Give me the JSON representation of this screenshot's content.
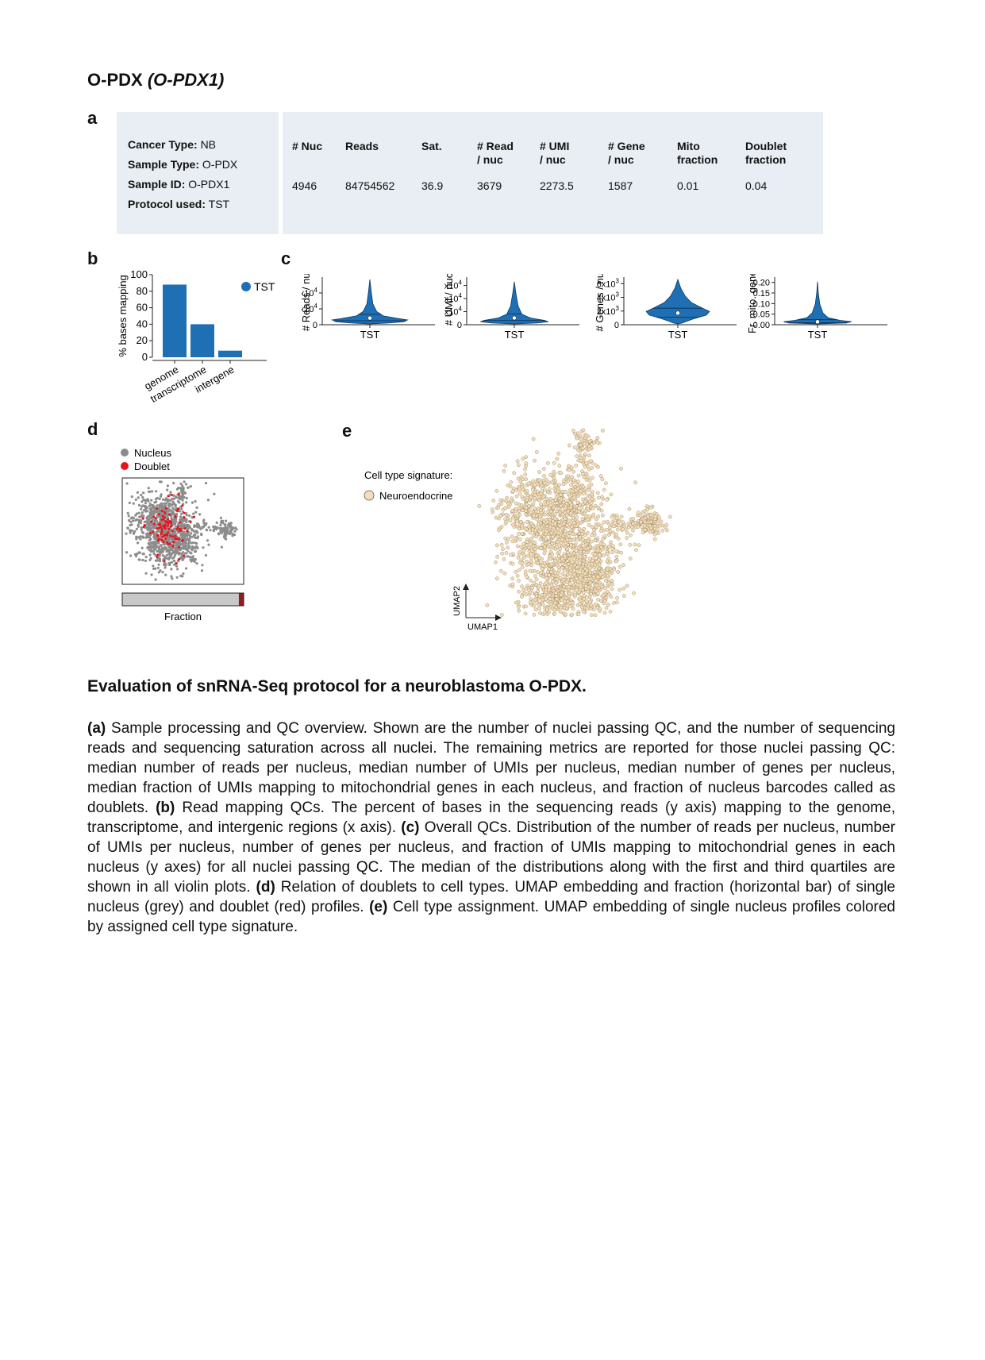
{
  "page_title": {
    "main": "O-PDX",
    "sub": "(O-PDX1)"
  },
  "panel_letters": {
    "a": "a",
    "b": "b",
    "c": "c",
    "d": "d",
    "e": "e"
  },
  "panel_a": {
    "info": [
      {
        "label": "Cancer Type:",
        "value": "NB"
      },
      {
        "label": "Sample Type:",
        "value": "O-PDX"
      },
      {
        "label": "Sample ID:",
        "value": "O-PDX1"
      },
      {
        "label": "Protocol used:",
        "value": "TST"
      }
    ],
    "headers": [
      "# Nuc",
      "Reads",
      "Sat.",
      "# Read\n/ nuc",
      "# UMI\n/ nuc",
      "# Gene\n/ nuc",
      "Mito\nfraction",
      "Doublet\nfraction"
    ],
    "values": [
      "4946",
      "84754562",
      "36.9",
      "3679",
      "2273.5",
      "1587",
      "0.01",
      "0.04"
    ]
  },
  "chart_data": [
    {
      "type": "bar",
      "panel": "b",
      "categories": [
        "genome",
        "transcriptome",
        "intergene"
      ],
      "series": [
        {
          "name": "TST",
          "values": [
            88,
            40,
            8
          ],
          "color": "#1f6fb4"
        }
      ],
      "ylabel": "% bases mapping",
      "ylim": [
        0,
        100
      ],
      "yticks": [
        "0",
        "20",
        "40",
        "60",
        "80",
        "100"
      ]
    },
    {
      "type": "violin",
      "panel": "c",
      "plots": [
        {
          "ylabel": "# Reads / nuc",
          "xlabel": "TST",
          "yticks": [
            "0",
            "1x10",
            "2x10"
          ],
          "ytick_exp": [
            "",
            "4",
            "4"
          ],
          "ytick_values": [
            0,
            10000,
            20000
          ],
          "ylim": [
            0,
            28000
          ],
          "median": 3679,
          "q1": 2000,
          "q3": 6000,
          "color": "#1f6fb4"
        },
        {
          "ylabel": "# UMI / nuc",
          "xlabel": "TST",
          "yticks": [
            "0",
            "0.5x10",
            "1.0x10",
            "1.5x10"
          ],
          "ytick_exp": [
            "",
            "4",
            "4",
            "4"
          ],
          "ytick_values": [
            0,
            5000,
            10000,
            15000
          ],
          "ylim": [
            0,
            17000
          ],
          "median": 2273.5,
          "q1": 1300,
          "q3": 3800,
          "color": "#1f6fb4"
        },
        {
          "ylabel": "# Genes / nuc",
          "xlabel": "TST",
          "yticks": [
            "0",
            "2x10",
            "4x10",
            "6x10"
          ],
          "ytick_exp": [
            "",
            "3",
            "3",
            "3"
          ],
          "ytick_values": [
            0,
            2000,
            4000,
            6000
          ],
          "ylim": [
            0,
            6500
          ],
          "median": 1587,
          "q1": 1000,
          "q3": 2300,
          "color": "#1f6fb4"
        },
        {
          "ylabel": "Fr. mito. genes",
          "xlabel": "TST",
          "yticks": [
            "0.00",
            "0.05",
            "0.10",
            "0.15",
            "0.20"
          ],
          "ytick_values": [
            0,
            0.05,
            0.1,
            0.15,
            0.2
          ],
          "ylim": [
            0,
            0.21
          ],
          "median": 0.01,
          "q1": 0.005,
          "q3": 0.02,
          "color": "#1f6fb4"
        }
      ]
    },
    {
      "type": "scatter",
      "panel": "d",
      "legend": [
        {
          "name": "Nucleus",
          "color": "#8c8c8c"
        },
        {
          "name": "Doublet",
          "color": "#e8141c"
        }
      ],
      "fraction_bar": {
        "xlabel": "Fraction",
        "nucleus_fraction": 0.96,
        "doublet_fraction": 0.04
      }
    },
    {
      "type": "scatter",
      "panel": "e",
      "legend_title": "Cell type signature:",
      "legend": [
        {
          "name": "Neuroendocrine",
          "color": "#f6dfb7"
        }
      ],
      "xlabel": "UMAP1",
      "ylabel": "UMAP2"
    }
  ],
  "caption": {
    "title": "Evaluation of snRNA-Seq protocol for a neuroblastoma O-PDX.",
    "parts": [
      {
        "bold": "(a)",
        "text": " Sample processing and QC overview. Shown are the number of nuclei passing QC, and the number of sequencing reads and sequencing saturation across all nuclei. The remaining metrics are reported for those nuclei passing QC: median number of reads per nucleus, median number of UMIs per nucleus, median number of genes per nucleus, median fraction of UMIs mapping to mitochondrial genes in each nucleus, and fraction of nucleus barcodes called as doublets. "
      },
      {
        "bold": "(b)",
        "text": " Read mapping QCs. The percent of bases in the sequencing reads (y axis) mapping to the genome, transcriptome, and intergenic regions (x axis). "
      },
      {
        "bold": "(c)",
        "text": " Overall QCs. Distribution of the number of reads per nucleus, number of UMIs per nucleus, number of genes per nucleus, and fraction of UMIs mapping to mitochondrial genes in each nucleus (y axes) for all nuclei passing QC. The median of the distributions along with the first and third quartiles are shown in all violin plots. "
      },
      {
        "bold": "(d)",
        "text": " Relation of doublets to cell types. UMAP embedding and fraction (horizontal bar) of single nucleus (grey) and doublet (red) profiles. "
      },
      {
        "bold": "(e)",
        "text": " Cell type assignment. UMAP embedding of single nucleus profiles colored by assigned cell type signature."
      }
    ]
  }
}
